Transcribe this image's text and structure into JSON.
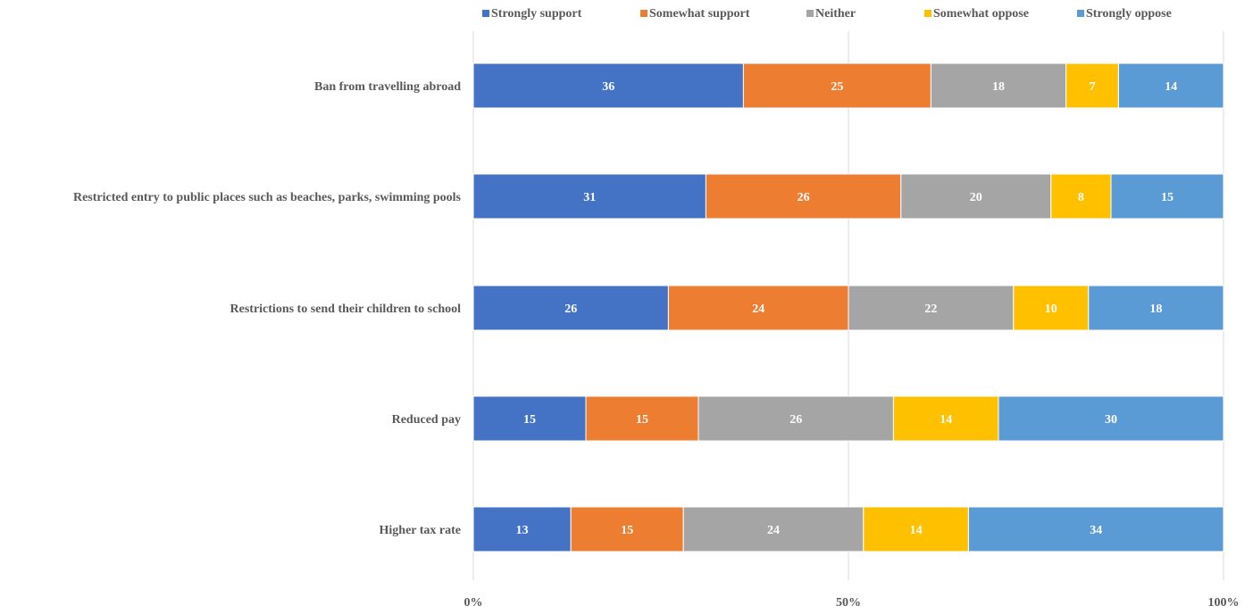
{
  "chart_data": {
    "type": "bar",
    "orientation": "horizontal",
    "stacked": "percent",
    "categories": [
      "Ban from travelling abroad",
      "Restricted entry to public places such as beaches, parks, swimming pools",
      "Restrictions to send their children to school",
      "Reduced pay",
      "Higher tax rate"
    ],
    "series": [
      {
        "name": "Strongly support",
        "color": "#4472C4",
        "values": [
          36,
          31,
          26,
          15,
          13
        ]
      },
      {
        "name": "Somewhat support",
        "color": "#ED7D31",
        "values": [
          25,
          26,
          24,
          15,
          15
        ]
      },
      {
        "name": "Neither",
        "color": "#A5A5A5",
        "values": [
          18,
          20,
          22,
          26,
          24
        ]
      },
      {
        "name": "Somewhat oppose",
        "color": "#FFC000",
        "values": [
          7,
          8,
          10,
          14,
          14
        ]
      },
      {
        "name": "Strongly oppose",
        "color": "#5B9BD5",
        "values": [
          14,
          15,
          18,
          30,
          34
        ]
      }
    ],
    "x_ticks": [
      "0%",
      "50%",
      "100%"
    ],
    "xlim": [
      0,
      100
    ],
    "grid": "vertical",
    "legend": "top"
  }
}
